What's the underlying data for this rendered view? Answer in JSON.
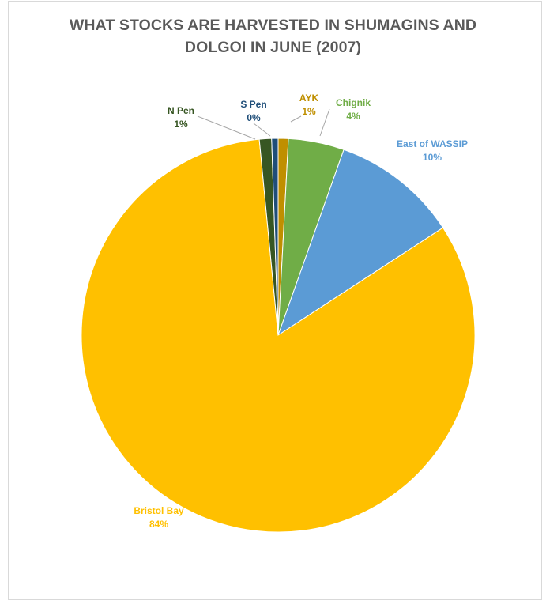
{
  "chart_data": {
    "type": "pie",
    "title_lines": [
      "WHAT STOCKS ARE HARVESTED IN SHUMAGINS AND",
      "DOLGOI IN JUNE (2007)"
    ],
    "slices": [
      {
        "name": "AYK",
        "value": 1,
        "label": "1%",
        "color": "#bf8f00"
      },
      {
        "name": "Chignik",
        "value": 4,
        "label": "4%",
        "color": "#70ad47"
      },
      {
        "name": "East of WASSIP",
        "value": 10,
        "label": "10%",
        "color": "#5b9bd5"
      },
      {
        "name": "Bristol Bay",
        "value": 84,
        "label": "84%",
        "color": "#ffc000"
      },
      {
        "name": "N Pen",
        "value": 1,
        "label": "1%",
        "color": "#375623"
      },
      {
        "name": "S Pen",
        "value": 0,
        "label": "0%",
        "color": "#1f4e79"
      }
    ],
    "legend": "none"
  }
}
